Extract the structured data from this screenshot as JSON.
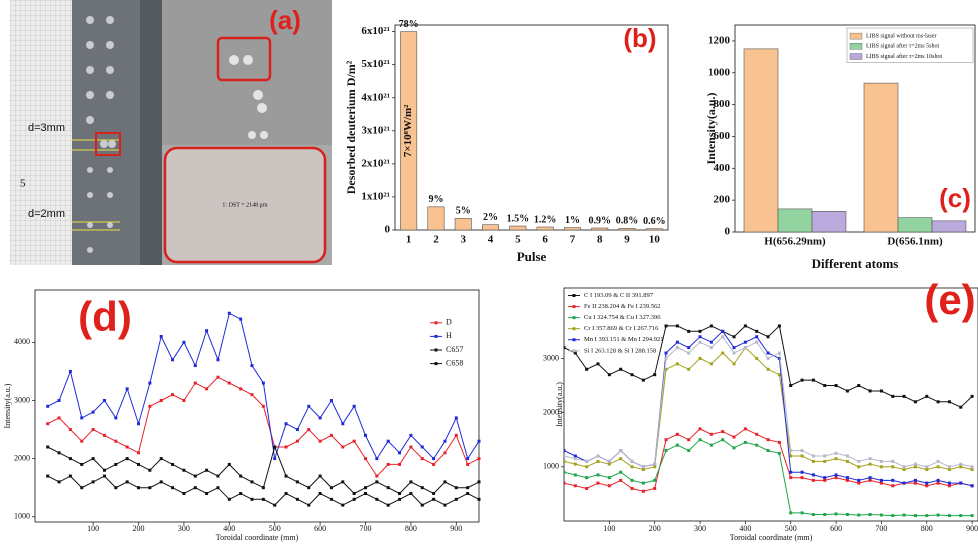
{
  "panel_a": {
    "label": "(a)",
    "texts": [
      "d=3mm",
      "d=2mm",
      "1: DST = 2148 μm",
      "5"
    ]
  },
  "chart_data": [
    {
      "type": "bar",
      "panel_label": "(b)",
      "ylabel": "Desorbed deuterium D/m²",
      "xlabel": "Pulse",
      "categories": [
        "1",
        "2",
        "3",
        "4",
        "5",
        "6",
        "7",
        "8",
        "9",
        "10"
      ],
      "values": [
        6e+21,
        7e+20,
        3.5e+20,
        1.6e+20,
        1.2e+20,
        9e+19,
        7e+19,
        6e+19,
        5e+19,
        4e+19
      ],
      "percent_labels": [
        "78%",
        "9%",
        "5%",
        "2%",
        "1.5%",
        "1.2%",
        "1%",
        "0.9%",
        "0.8%",
        "0.6%"
      ],
      "annotation": "7×10⁸W/m²",
      "color": "#f8c291",
      "ylim": [
        0,
        6.2e+21
      ],
      "yticks": [
        0,
        {
          "value": 1e+21,
          "label": "1x10²¹"
        },
        {
          "value": 2e+21,
          "label": "2x10²¹"
        },
        {
          "value": 3e+21,
          "label": "3x10²¹"
        },
        {
          "value": 4e+21,
          "label": "4x10²¹"
        },
        {
          "value": 5e+21,
          "label": "5x10²¹"
        },
        {
          "value": 6e+21,
          "label": "6x10²¹"
        }
      ]
    },
    {
      "type": "bar",
      "panel_label": "(c)",
      "ylabel": "Intensity(a.u.)",
      "xlabel": "Different atoms",
      "categories": [
        "H(656.29nm)",
        "D(656.1nm)"
      ],
      "legend": "upper right",
      "series": [
        {
          "name": "LIBS signal without ms-laser",
          "color": "#f8c291",
          "values": [
            1150,
            935
          ]
        },
        {
          "name": "LIBS signal after τ=2ms 5shot",
          "color": "#92d3a0",
          "values": [
            145,
            90
          ]
        },
        {
          "name": "LIBS signal after τ=2ms 10shot",
          "color": "#b9a9dc",
          "values": [
            130,
            70
          ]
        }
      ],
      "ylim": [
        0,
        1300
      ],
      "yticks": [
        0,
        200,
        400,
        600,
        800,
        1000,
        1200
      ]
    },
    {
      "type": "line",
      "panel_label": "(d)",
      "ylabel": "Intensity(a.u.)",
      "xlabel": "Toroidal coordinate (mm)",
      "legend": "upper right",
      "x": [
        0,
        25,
        50,
        75,
        100,
        125,
        150,
        175,
        200,
        225,
        250,
        275,
        300,
        325,
        350,
        375,
        400,
        425,
        450,
        475,
        500,
        525,
        550,
        575,
        600,
        625,
        650,
        675,
        700,
        725,
        750,
        775,
        800,
        825,
        850,
        875,
        900,
        925,
        950
      ],
      "series": [
        {
          "name": "D",
          "color": "#e8222a",
          "values": [
            2600,
            2700,
            2500,
            2300,
            2500,
            2400,
            2300,
            2200,
            2100,
            2900,
            3000,
            3100,
            3000,
            3300,
            3200,
            3400,
            3300,
            3200,
            3100,
            2900,
            2200,
            2200,
            2300,
            2500,
            2300,
            2400,
            2200,
            2300,
            2000,
            1700,
            1900,
            1900,
            2200,
            2000,
            1900,
            2100,
            2400,
            1900,
            2000
          ]
        },
        {
          "name": "H",
          "color": "#1f2bd8",
          "values": [
            2900,
            3000,
            3500,
            2700,
            2800,
            3000,
            2700,
            3200,
            2600,
            3300,
            4100,
            3700,
            4000,
            3600,
            4200,
            3700,
            4500,
            4400,
            3600,
            3300,
            2000,
            2600,
            2500,
            2900,
            2700,
            3000,
            2600,
            2900,
            2400,
            2000,
            2300,
            2100,
            2400,
            2200,
            2000,
            2300,
            2700,
            2000,
            2300
          ]
        },
        {
          "name": "C657",
          "color": "#111111",
          "values": [
            2200,
            2100,
            2000,
            1900,
            2000,
            1800,
            1900,
            2000,
            1900,
            1800,
            2000,
            1900,
            1800,
            1700,
            1800,
            1700,
            1900,
            1700,
            1600,
            1500,
            2200,
            1700,
            1600,
            1500,
            1700,
            1500,
            1600,
            1400,
            1500,
            1600,
            1500,
            1400,
            1600,
            1500,
            1400,
            1600,
            1500,
            1500,
            1600
          ]
        },
        {
          "name": "C658",
          "color": "#111111",
          "values": [
            1700,
            1600,
            1700,
            1500,
            1600,
            1700,
            1500,
            1600,
            1500,
            1500,
            1600,
            1500,
            1400,
            1500,
            1400,
            1500,
            1300,
            1400,
            1300,
            1300,
            1200,
            1400,
            1300,
            1200,
            1400,
            1300,
            1200,
            1300,
            1400,
            1300,
            1200,
            1300,
            1400,
            1200,
            1300,
            1200,
            1300,
            1400,
            1300
          ]
        }
      ],
      "xlim": [
        -28,
        950
      ],
      "xticks": [
        100,
        200,
        300,
        400,
        500,
        600,
        700,
        800,
        900
      ],
      "ylim": [
        910,
        4900
      ],
      "yticks": [
        1000,
        2000,
        3000,
        4000
      ]
    },
    {
      "type": "line",
      "panel_label": "(e)",
      "ylabel": "Intensity(a.u.)",
      "xlabel": "Toroidal coordinate (mm)",
      "legend": "upper left",
      "x": [
        0,
        25,
        50,
        75,
        100,
        125,
        150,
        175,
        200,
        225,
        250,
        275,
        300,
        325,
        350,
        375,
        400,
        425,
        450,
        475,
        500,
        525,
        550,
        575,
        600,
        625,
        650,
        675,
        700,
        725,
        750,
        775,
        800,
        825,
        850,
        875,
        900
      ],
      "series": [
        {
          "name": "C I 193.09 & C II 391.897",
          "color": "#111111",
          "values": [
            3200,
            3100,
            2800,
            2900,
            2700,
            2800,
            2700,
            2600,
            2700,
            3600,
            3600,
            3500,
            3500,
            3600,
            3500,
            3400,
            3600,
            3500,
            3400,
            3600,
            2500,
            2600,
            2600,
            2500,
            2500,
            2400,
            2500,
            2400,
            2400,
            2300,
            2300,
            2200,
            2300,
            2200,
            2200,
            2100,
            2300
          ]
        },
        {
          "name": "Fe II 238.204 & Fe I 239.562",
          "color": "#e8222a",
          "values": [
            700,
            650,
            600,
            700,
            650,
            750,
            600,
            550,
            600,
            1500,
            1600,
            1500,
            1700,
            1600,
            1650,
            1550,
            1700,
            1600,
            1500,
            1450,
            800,
            800,
            750,
            750,
            800,
            750,
            700,
            750,
            700,
            650,
            700,
            700,
            650,
            700,
            650,
            700,
            650
          ]
        },
        {
          "name": "Cu I 324.754 & Cu I 327.396",
          "color": "#1fa64a",
          "values": [
            900,
            850,
            800,
            850,
            800,
            900,
            750,
            700,
            750,
            1300,
            1400,
            1300,
            1500,
            1400,
            1500,
            1350,
            1450,
            1400,
            1300,
            1250,
            150,
            150,
            120,
            120,
            130,
            120,
            110,
            120,
            110,
            100,
            110,
            100,
            100,
            110,
            100,
            100,
            100
          ]
        },
        {
          "name": "Cr I 357.869 & Cr I 267.716",
          "color": "#a3a31c",
          "values": [
            1100,
            1050,
            1000,
            1100,
            1050,
            1150,
            1000,
            950,
            1000,
            2800,
            2900,
            2800,
            3000,
            2900,
            3100,
            2900,
            3200,
            3000,
            2800,
            2700,
            1200,
            1200,
            1100,
            1100,
            1150,
            1100,
            1000,
            1050,
            1000,
            1000,
            950,
            1000,
            950,
            1000,
            950,
            1000,
            950
          ]
        },
        {
          "name": "Mn I 393.151 & Mn I 294.921",
          "color": "#1f2bd8",
          "values": [
            1300,
            1200,
            1100,
            1200,
            1100,
            1300,
            1100,
            1000,
            1050,
            3100,
            3300,
            3200,
            3400,
            3300,
            3500,
            3200,
            3300,
            3400,
            3100,
            3000,
            900,
            900,
            850,
            800,
            850,
            800,
            750,
            800,
            750,
            750,
            700,
            750,
            700,
            750,
            700,
            700,
            650
          ]
        },
        {
          "name": "Si I 263.128 & Si I 288.158",
          "color": "#b8b8c8",
          "values": [
            1200,
            1150,
            1100,
            1200,
            1100,
            1300,
            1100,
            1000,
            1050,
            3000,
            3200,
            3100,
            3300,
            3200,
            3400,
            3100,
            3200,
            3300,
            3000,
            3100,
            1300,
            1300,
            1200,
            1200,
            1250,
            1200,
            1100,
            1150,
            1100,
            1100,
            1000,
            1050,
            1000,
            1100,
            1000,
            1050,
            1000
          ]
        }
      ],
      "xlim": [
        0,
        913
      ],
      "xticks": [
        100,
        200,
        300,
        400,
        500,
        600,
        700,
        800,
        900
      ],
      "ylim": [
        0,
        4300
      ],
      "yticks": [
        1000,
        2000,
        3000
      ]
    }
  ]
}
